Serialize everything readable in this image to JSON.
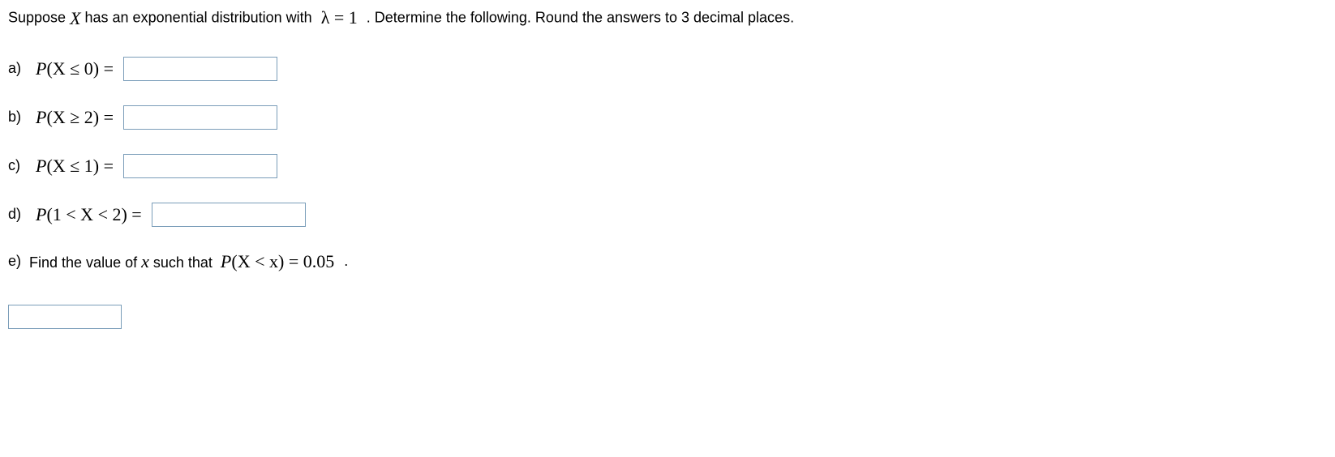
{
  "intro": {
    "prefix": "Suppose ",
    "var": "X",
    "mid": " has an exponential distribution with ",
    "lambda_expr": "λ = 1",
    "suffix": " . Determine the following. Round the answers to 3 decimal places."
  },
  "parts": {
    "a": {
      "label": "a)",
      "expr_pre": "P",
      "expr_body": "(X ≤ 0) ="
    },
    "b": {
      "label": "b)",
      "expr_pre": "P",
      "expr_body": "(X ≥ 2) ="
    },
    "c": {
      "label": "c)",
      "expr_pre": "P",
      "expr_body": "(X ≤ 1) ="
    },
    "d": {
      "label": "d)",
      "expr_pre": "P",
      "expr_body": "(1 < X < 2) ="
    },
    "e": {
      "label": "e)",
      "text_pre": " Find the value of ",
      "text_var": "x",
      "text_mid": " such that ",
      "expr_pre": "P",
      "expr_body": "(X < x) = 0.05",
      "period": " ."
    }
  },
  "inputs": {
    "a": "",
    "b": "",
    "c": "",
    "d": "",
    "e": ""
  },
  "style": {
    "input_border": "#7a9db9",
    "text_color": "#000000",
    "background": "#ffffff"
  }
}
